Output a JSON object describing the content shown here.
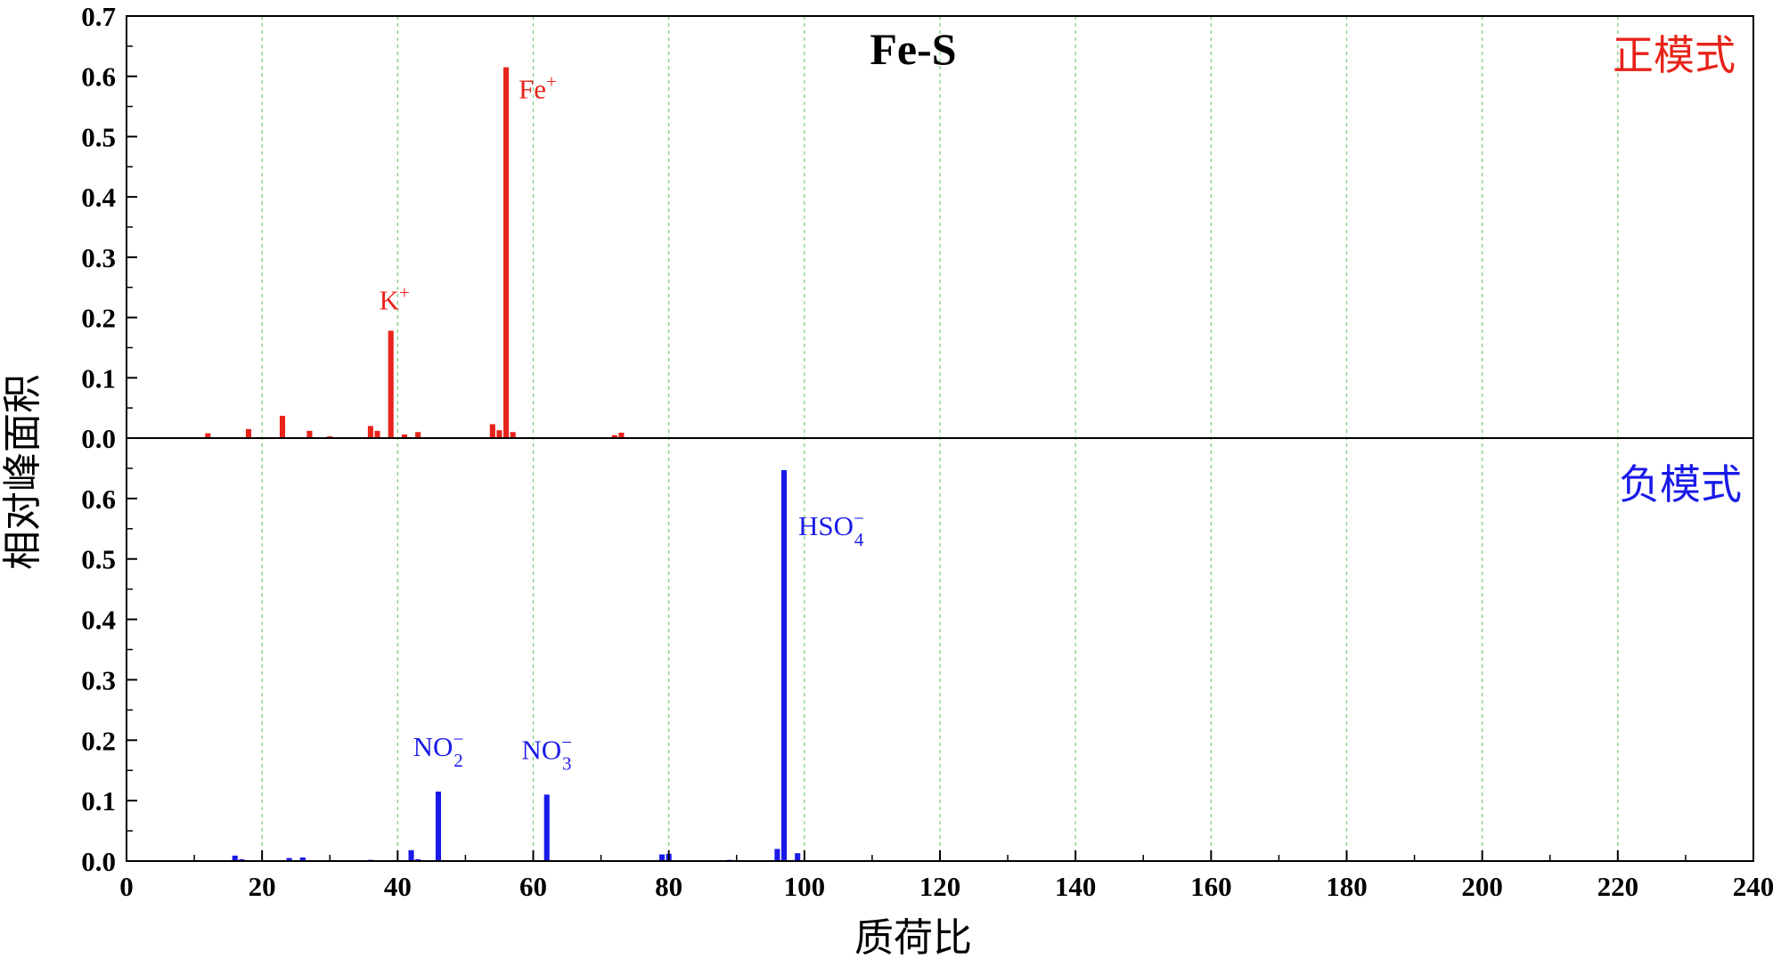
{
  "chart_data": {
    "type": "bar",
    "title": "Fe-S",
    "xlabel": "质荷比",
    "ylabel": "相对峰面积",
    "xlim": [
      0,
      240
    ],
    "x_ticks": [
      0,
      20,
      40,
      60,
      80,
      100,
      120,
      140,
      160,
      180,
      200,
      220,
      240
    ],
    "grid": "vertical dashed green at major x ticks",
    "panels": [
      {
        "mode_label": "正模式",
        "color": "#e8231a",
        "ylim": [
          0,
          0.7
        ],
        "y_ticks": [
          0.0,
          0.1,
          0.2,
          0.3,
          0.4,
          0.5,
          0.6,
          0.7
        ],
        "y_tick_labels": [
          "0.0",
          "0.1",
          "0.2",
          "0.3",
          "0.4",
          "0.5",
          "0.6",
          "0.7"
        ],
        "x": [
          12,
          18,
          23,
          27,
          30,
          36,
          37,
          39,
          41,
          43,
          54,
          55,
          56,
          57,
          72,
          73
        ],
        "values": [
          0.008,
          0.015,
          0.037,
          0.012,
          0.003,
          0.02,
          0.012,
          0.178,
          0.006,
          0.01,
          0.023,
          0.013,
          0.615,
          0.01,
          0.005,
          0.009
        ],
        "annotations": [
          {
            "x": 39,
            "y": 0.178,
            "base": "K",
            "sup": "+",
            "sub": ""
          },
          {
            "x": 56,
            "y": 0.615,
            "base": "Fe",
            "sup": "+",
            "sub": ""
          }
        ]
      },
      {
        "mode_label": "负模式",
        "color": "#1a1ae8",
        "ylim": [
          0,
          0.7
        ],
        "y_ticks": [
          0.0,
          0.1,
          0.2,
          0.3,
          0.4,
          0.5,
          0.6,
          0.7
        ],
        "y_tick_labels": [
          "0.0",
          "0.1",
          "0.2",
          "0.3",
          "0.4",
          "0.5",
          "0.6",
          "0.7"
        ],
        "x": [
          16,
          17,
          24,
          26,
          36,
          42,
          43,
          46,
          62,
          79,
          80,
          89,
          96,
          97,
          99
        ],
        "values": [
          0.009,
          0.003,
          0.005,
          0.006,
          0.002,
          0.018,
          0.003,
          0.115,
          0.11,
          0.011,
          0.012,
          0.002,
          0.02,
          0.647,
          0.013
        ],
        "annotations": [
          {
            "x": 46,
            "y": 0.115,
            "base": "NO",
            "sup": "−",
            "sub": "2"
          },
          {
            "x": 62,
            "y": 0.11,
            "base": "NO",
            "sup": "−",
            "sub": "3"
          },
          {
            "x": 97,
            "y": 0.647,
            "base": "HSO",
            "sup": "−",
            "sub": "4"
          }
        ]
      }
    ]
  }
}
